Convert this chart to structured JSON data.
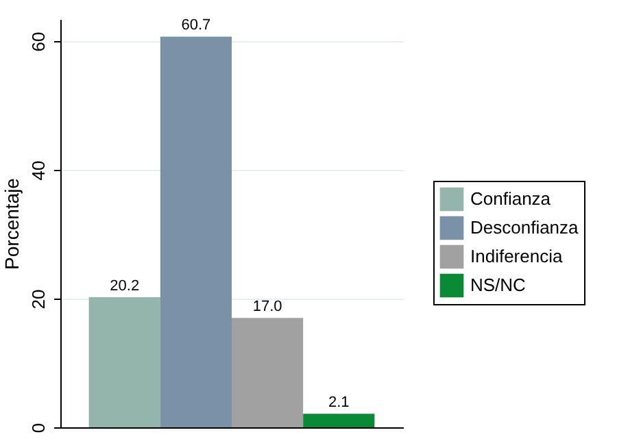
{
  "chart_data": {
    "type": "bar",
    "ylabel": "Porcentaje",
    "categories": [
      null
    ],
    "series": [
      {
        "name": "Confianza",
        "color": "#93b5ab",
        "values": [
          20.2
        ],
        "value_labels": [
          "20.2"
        ]
      },
      {
        "name": "Desconfianza",
        "color": "#7a92a8",
        "values": [
          60.7
        ],
        "value_labels": [
          "60.7"
        ]
      },
      {
        "name": "Indiferencia",
        "color": "#a1a1a1",
        "values": [
          17.0
        ],
        "value_labels": [
          "17.0"
        ]
      },
      {
        "name": "NS/NC",
        "color": "#0b8a35",
        "values": [
          2.1
        ],
        "value_labels": [
          "2.1"
        ]
      }
    ],
    "ylim": [
      0,
      63.4
    ],
    "yticks": [
      0,
      20,
      40,
      60
    ],
    "grid": "y",
    "legend": "right",
    "tick_labels": "y"
  }
}
